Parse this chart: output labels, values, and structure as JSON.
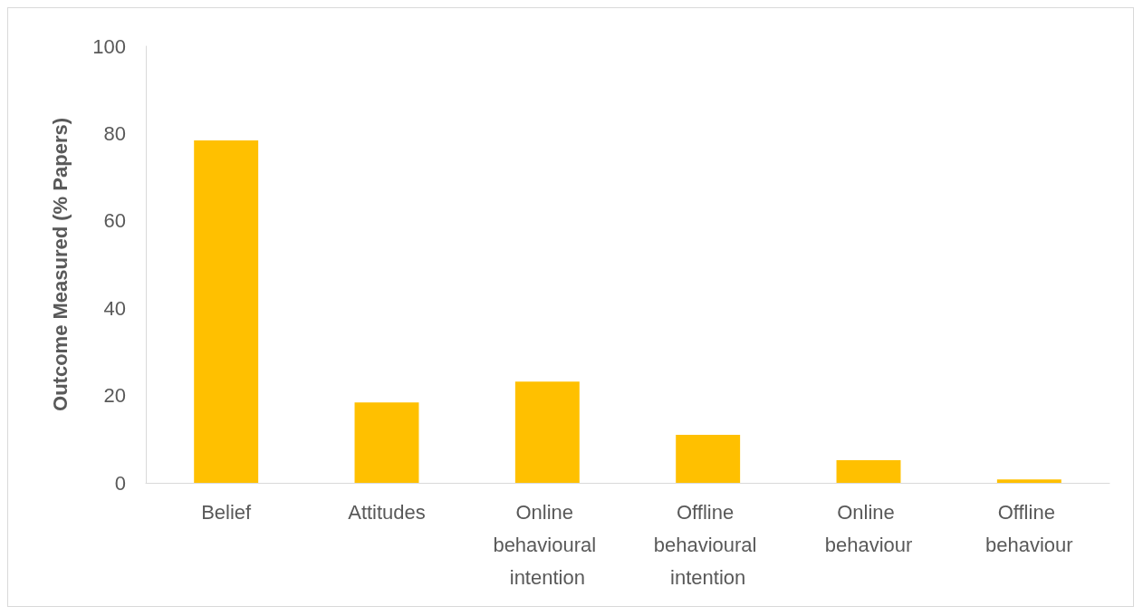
{
  "chart_data": {
    "type": "bar",
    "ylabel": "Outcome Measured (% Papers)",
    "categories": [
      "Belief",
      "Attitudes",
      "Online behavioural intention",
      "Offline behavioural intention",
      "Online behaviour",
      "Offline behaviour"
    ],
    "values": [
      78.4,
      18.4,
      23.2,
      11.0,
      5.2,
      0.8
    ],
    "color": "#ffc000",
    "ylim": [
      0,
      100
    ],
    "yticks": [
      0,
      20,
      40,
      60,
      80,
      100
    ],
    "grid": false
  }
}
